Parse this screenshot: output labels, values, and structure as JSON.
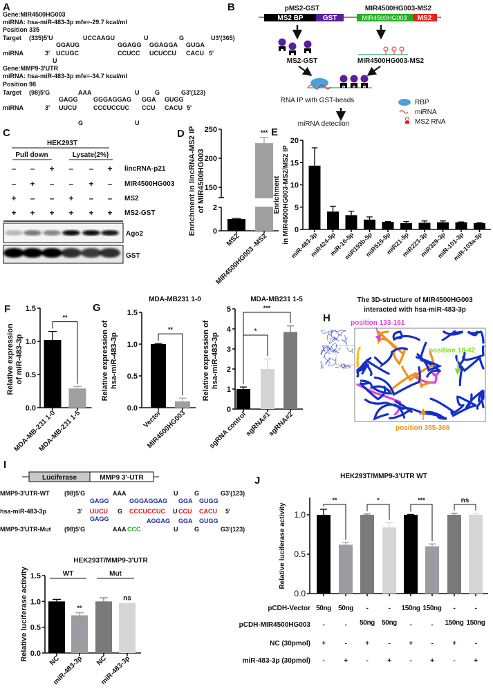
{
  "panels": {
    "A": {
      "label": "A",
      "site1": {
        "gene": "Gene:MIR4500HG003",
        "mirna": "miRNA: hsa-miR-483-3p mfe=-29.7 kcal/ml",
        "position": "Position 335",
        "target": [
          "Target",
          "(335)5'U",
          "UCCAAGU",
          "U",
          "G",
          "U3'(365)"
        ],
        "paired_top": [
          "GGAUG",
          "GGAGG",
          "GGAGGA",
          "GUGA"
        ],
        "mirna_row": [
          "miRNA",
          "3'",
          "UCUGC",
          "CCUCC",
          "UCUCCU",
          "CACU",
          "5'"
        ],
        "bottom": [
          "U"
        ]
      },
      "site2": {
        "gene": "Gene:MMP9-3'UTR",
        "mirna": "miRNA: hsa-miR-483-3p mfe=-34.7 kcal/ml",
        "position": "Position 98",
        "target": [
          "Target",
          "(98)5'G",
          "AAA",
          "U",
          "G",
          "G3'(123)"
        ],
        "paired_top": [
          "GAGG",
          "GGGAGGAG",
          "GGA",
          "GUGG"
        ],
        "mirna_row": [
          "miRNA",
          "3'",
          "UUCU",
          "CCCUCCUC",
          "CCU",
          "CACU",
          "5'"
        ],
        "bottom": [
          "G",
          "U"
        ]
      }
    },
    "B": {
      "label": "B",
      "construct1_title": "pMS2-GST",
      "construct1_parts": [
        "MS2 BP",
        "GST"
      ],
      "construct2_title": "MIR4500HG003-MS2",
      "construct2_parts": [
        "MIR4500HG003",
        "MS2"
      ],
      "product1": "MS2-GST",
      "product2": "MIR4500HG003-MS2",
      "step": "RNA IP with GST-beads",
      "final": "miRNA detection",
      "legend": [
        "RBP",
        "miRNA",
        "MS2 RNA"
      ],
      "colors": {
        "ms2bp": "#000000",
        "gst": "#5a1f9c",
        "lnc": "#22b022",
        "ms2": "#e8201c",
        "rbp": "#4f9fd8"
      }
    },
    "C": {
      "label": "C",
      "cell_line": "HEK293T",
      "groups": [
        "Pull down",
        "Lysate(2%)"
      ],
      "rows": [
        {
          "name": "lincRNA-p21",
          "lanes": [
            "–",
            "–",
            "+",
            "–",
            "–",
            "+"
          ]
        },
        {
          "name": "MIR4500HG003",
          "lanes": [
            "–",
            "+",
            "–",
            "–",
            "+",
            "–"
          ]
        },
        {
          "name": "MS2",
          "lanes": [
            "+",
            "–",
            "–",
            "+",
            "–",
            "–"
          ]
        },
        {
          "name": "MS2-GST",
          "lanes": [
            "+",
            "+",
            "+",
            "+",
            "+",
            "+"
          ]
        }
      ],
      "blots": [
        "Ago2",
        "GST"
      ]
    },
    "D": {
      "label": "D"
    },
    "E": {
      "label": "E"
    },
    "F": {
      "label": "F"
    },
    "G": {
      "label": "G"
    },
    "H": {
      "label": "H",
      "title_line1": "The 3D-structure of MIR4500HG003",
      "title_line2": "interacted  with hsa-miR-483-3p",
      "annotations": [
        "position 133-161",
        "position 18-42",
        "position 355-366"
      ],
      "colors": {
        "p1": "#e040d8",
        "p2": "#7ee020",
        "p3": "#f0901a",
        "rna": "#1530c8"
      }
    },
    "I": {
      "label": "I",
      "construct": [
        "Luciferase",
        "MMP9 3'-UTR"
      ],
      "wt_label": "MMP9-3'UTR-WT",
      "wt_row": [
        "(98)5'G",
        "AAA",
        "U",
        "G",
        "G3'(123)"
      ],
      "wt_paired": [
        "GAGG",
        "GGGAGGAG",
        "GGA",
        "GUGG"
      ],
      "mir_label": "hsa-miR-483-3p",
      "mir_row": [
        "3'",
        "UUCU",
        "G",
        "CCCUCCUC",
        "U",
        "CCU",
        "CACU",
        "5'"
      ],
      "mut_paired": [
        "GAGG",
        "AGGAG",
        "GGA",
        "GUGG"
      ],
      "mut_label": "MMP9-3'UTR-Mut",
      "mut_row": [
        "(98)5'G",
        "AAA",
        "CCC",
        "U",
        "G",
        "G3'(123)"
      ]
    },
    "J": {
      "label": "J",
      "conditions": [
        {
          "name": "pCDH-Vector",
          "values": [
            "50ng",
            "50ng",
            "-",
            "-",
            "150ng",
            "150ng",
            "-",
            "-"
          ]
        },
        {
          "name": "pCDH-MIR4500HG003",
          "values": [
            "-",
            "-",
            "50ng",
            "50ng",
            "-",
            "-",
            "150ng",
            "150ng"
          ]
        },
        {
          "name": "NC  (30pmol)",
          "values": [
            "+",
            "-",
            "+",
            "-",
            "+",
            "-",
            "+",
            "-"
          ]
        },
        {
          "name": "miR-483-3p (30pmol)",
          "values": [
            "-",
            "+",
            "-",
            "+",
            "-",
            "+",
            "-",
            "+"
          ]
        }
      ]
    }
  },
  "chart_data": [
    {
      "id": "D",
      "type": "bar",
      "title": "",
      "ylabel": "Enrichment in lincRNA-MS2 IP of MIR4500HG003",
      "categories": [
        "MS2",
        "MIR4500HG003 -MS2"
      ],
      "values": [
        1.0,
        226
      ],
      "errors": [
        0.05,
        10
      ],
      "colors": [
        "#000000",
        "#a0a0a0"
      ],
      "yticks": [
        0,
        2,
        150,
        200,
        250
      ],
      "axis_break": [
        2,
        150
      ],
      "ylim": [
        0,
        250
      ],
      "significance": [
        {
          "bar": 1,
          "label": "***"
        }
      ]
    },
    {
      "id": "E",
      "type": "bar",
      "ylabel": "Enrichment in MIR4500HG003-MS2/MS2 IP",
      "categories": [
        "miR-483-3p",
        "miR424-5p",
        "miR-16-5p",
        "miR193b-5p",
        "miR515-5p",
        "miR21-5p",
        "miR223-3p",
        "miR329-3p",
        "miR-101-3p",
        "miR-103a-3p"
      ],
      "values": [
        14.3,
        4.0,
        3.2,
        2.2,
        1.7,
        1.4,
        1.5,
        1.6,
        1.6,
        1.4
      ],
      "errors": [
        4.0,
        1.2,
        0.9,
        0.6,
        0.05,
        0.35,
        0.4,
        0.3,
        0.08,
        0.12
      ],
      "colors": [
        "#000000"
      ],
      "yticks": [
        0,
        5,
        10,
        15,
        20
      ],
      "ylim": [
        0,
        20
      ]
    },
    {
      "id": "F",
      "type": "bar",
      "ylabel": "Relative expression of miR-483-3p",
      "categories": [
        "MDA-MB-231 1-0",
        "MDA-MB-231 1-5"
      ],
      "values": [
        1.02,
        0.29
      ],
      "errors": [
        0.13,
        0.03
      ],
      "colors": [
        "#000000",
        "#a0a0a0"
      ],
      "yticks": [
        0.0,
        0.5,
        1.0,
        1.5
      ],
      "ylim": [
        0,
        1.5
      ],
      "significance": [
        {
          "pair": [
            0,
            1
          ],
          "label": "**"
        }
      ]
    },
    {
      "id": "G1",
      "type": "bar",
      "title": "MDA-MB231 1-0",
      "ylabel": "Relative expression of hsa-miR-483-3p",
      "categories": [
        "Vector",
        "MIR4500HG003"
      ],
      "values": [
        1.0,
        0.1
      ],
      "errors": [
        0.01,
        0.05
      ],
      "colors": [
        "#000000",
        "#a0a0a0"
      ],
      "yticks": [
        0.0,
        0.5,
        1.0,
        1.5
      ],
      "ylim": [
        0,
        1.5
      ],
      "significance": [
        {
          "pair": [
            0,
            1
          ],
          "label": "**"
        }
      ]
    },
    {
      "id": "G2",
      "type": "bar",
      "title": "MDA-MB231 1-5",
      "ylabel": "Relative expression of hsa-miR-483-3p",
      "categories": [
        "sgRNA control",
        "sgRNA#1",
        "sgRNA#2"
      ],
      "values": [
        1.0,
        2.0,
        3.85
      ],
      "errors": [
        0.1,
        0.5,
        0.3
      ],
      "colors": [
        "#000000",
        "#d4d4d4",
        "#7a7a7a"
      ],
      "yticks": [
        0,
        1,
        2,
        3,
        4,
        5
      ],
      "ylim": [
        0,
        5
      ],
      "significance": [
        {
          "pair": [
            0,
            1
          ],
          "label": "*"
        },
        {
          "pair": [
            0,
            2
          ],
          "label": "***"
        }
      ]
    },
    {
      "id": "I",
      "type": "bar",
      "title": "HEK293T/MMP9-3'UTR",
      "ylabel": "Relative luciferase activity",
      "groups": [
        "WT",
        "Mut"
      ],
      "categories": [
        "NC",
        "miR-483-3p",
        "NC",
        "miR-483-3p"
      ],
      "values": [
        1.0,
        0.73,
        1.0,
        0.97
      ],
      "errors": [
        0.04,
        0.05,
        0.07,
        0.0
      ],
      "colors": [
        "#000000",
        "#9c9ca2",
        "#7a7a7a",
        "#d6d6d6"
      ],
      "yticks": [
        0.0,
        0.5,
        1.0,
        1.5
      ],
      "ylim": [
        0,
        1.5
      ],
      "significance": [
        {
          "bar": 1,
          "label": "**"
        },
        {
          "bar": 3,
          "label": "ns"
        }
      ]
    },
    {
      "id": "J",
      "type": "bar",
      "title": "HEK293T/MMP9-3'UTR WT",
      "ylabel": "Relative luciferase activity",
      "values": [
        1.0,
        0.62,
        1.0,
        0.84,
        1.0,
        0.6,
        1.0,
        1.0
      ],
      "errors": [
        0.07,
        0.03,
        0.01,
        0.06,
        0.005,
        0.03,
        0.02,
        0.02
      ],
      "colors": [
        "#000000",
        "#9c9ca2",
        "#7a7a7a",
        "#d6d6d6",
        "#000000",
        "#9c9ca2",
        "#7a7a7a",
        "#d6d6d6"
      ],
      "yticks": [
        0.0,
        0.5,
        1.0
      ],
      "ylim": [
        0,
        1.2
      ],
      "significance": [
        {
          "pair": [
            0,
            1
          ],
          "label": "**"
        },
        {
          "pair": [
            2,
            3
          ],
          "label": "*"
        },
        {
          "pair": [
            4,
            5
          ],
          "label": "***"
        },
        {
          "pair": [
            6,
            7
          ],
          "label": "ns"
        }
      ]
    }
  ]
}
